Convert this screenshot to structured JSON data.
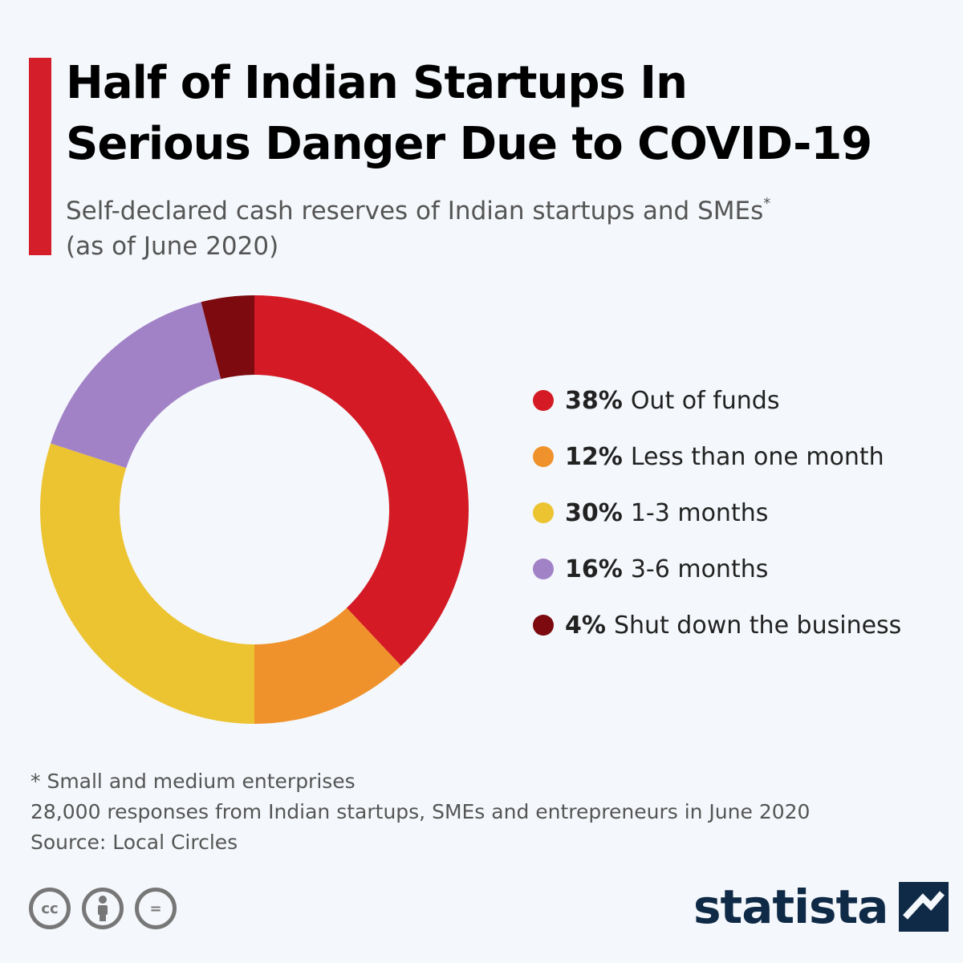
{
  "header": {
    "title_line1": "Half of Indian Startups In",
    "title_line2": "Serious Danger Due to COVID-19",
    "subtitle_line1": "Self-declared cash reserves of Indian startups and SMEs",
    "subtitle_marker": "*",
    "subtitle_line2": "(as of June 2020)"
  },
  "colors": {
    "accent": "#d41f2b",
    "brand": "#0f2a46"
  },
  "chart_data": {
    "type": "pie",
    "donut": true,
    "categories": [
      "Out of funds",
      "Less than one month",
      "1-3 months",
      "3-6 months",
      "Shut down the business"
    ],
    "values": [
      38,
      12,
      30,
      16,
      4
    ],
    "labels": [
      "38%",
      "12%",
      "30%",
      "16%",
      "4%"
    ],
    "colors": [
      "#d41a24",
      "#f0922c",
      "#ecc432",
      "#a282c6",
      "#7c0a0f"
    ],
    "legend_position": "right"
  },
  "notes": {
    "footnote": "* Small and medium enterprises",
    "responses": "28,000 responses from Indian startups, SMEs and entrepreneurs in June 2020",
    "source": "Source: Local Circles"
  },
  "footer": {
    "license_icons": [
      "creative-commons-icon",
      "attribution-icon",
      "no-derivatives-icon"
    ],
    "cc_label": "cc",
    "nd_label": "=",
    "brand": "statista"
  }
}
